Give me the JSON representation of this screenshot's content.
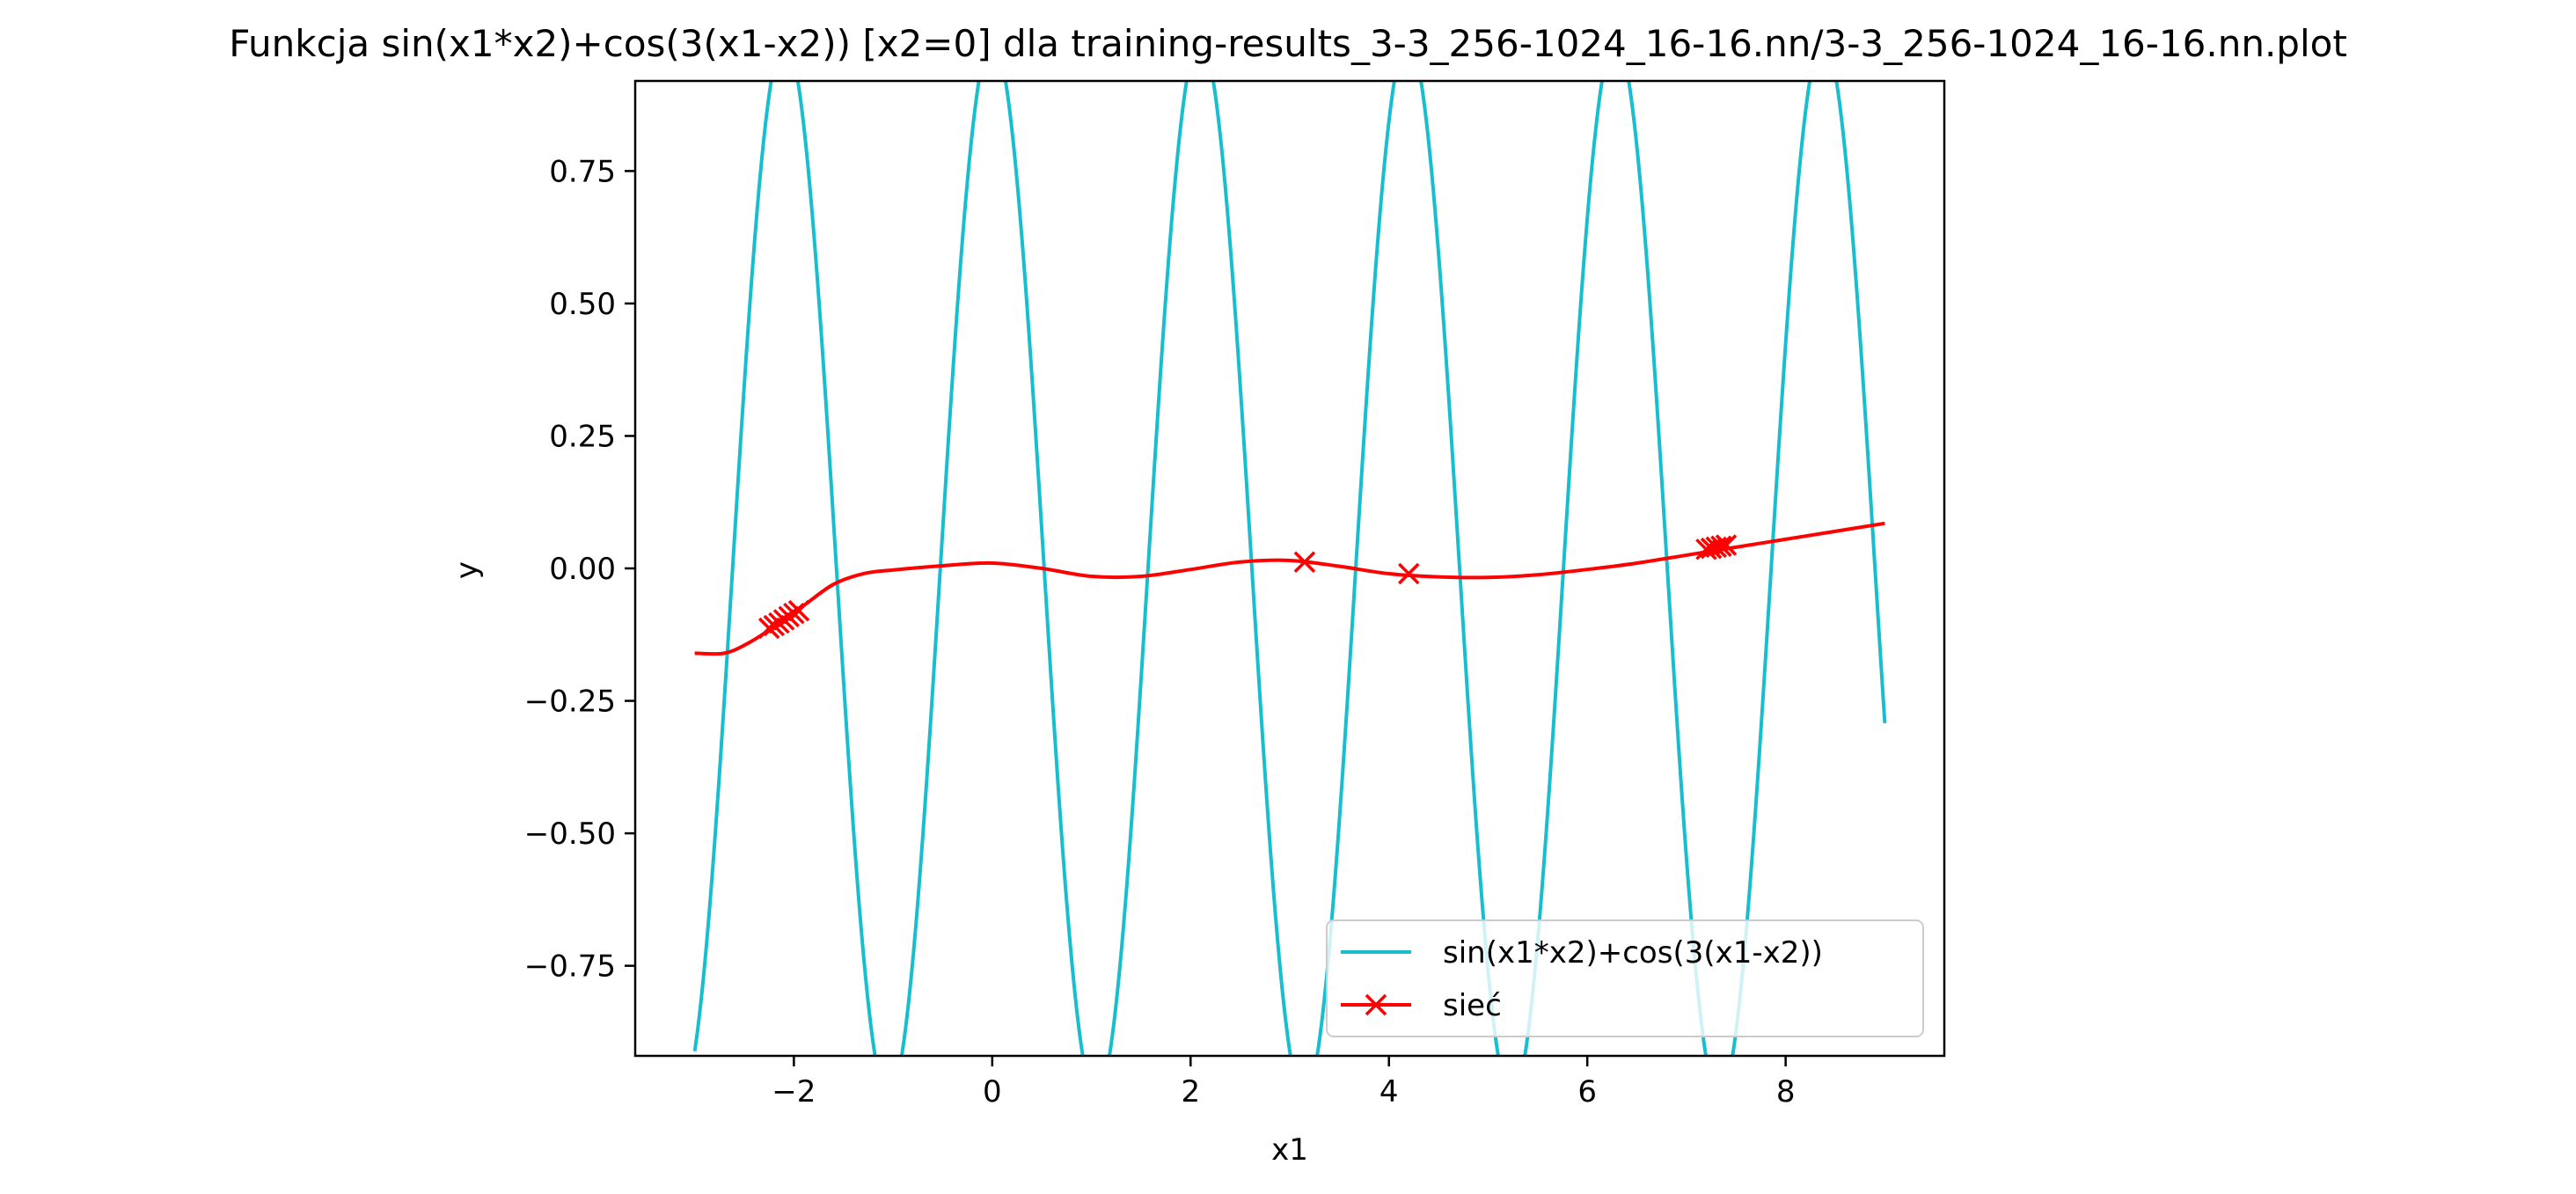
{
  "chart_data": {
    "type": "line",
    "title": "Funkcja sin(x1*x2)+cos(3(x1-x2)) [x2=0] dla training-results_3-3_256-1024_16-16.nn/3-3_256-1024_16-16.nn.plot",
    "xlabel": "x1",
    "ylabel": "y",
    "xlim": [
      -3.6,
      9.6
    ],
    "ylim": [
      -0.92,
      0.92
    ],
    "x_ticks": [
      -2,
      0,
      2,
      4,
      6,
      8
    ],
    "x_tick_labels": [
      "−2",
      "0",
      "2",
      "4",
      "6",
      "8"
    ],
    "y_ticks": [
      -0.75,
      -0.5,
      -0.25,
      0.0,
      0.25,
      0.5,
      0.75
    ],
    "y_tick_labels": [
      "−0.75",
      "−0.50",
      "−0.25",
      "0.00",
      "0.25",
      "0.50",
      "0.75"
    ],
    "grid": false,
    "legend_position": "lower-right",
    "series": [
      {
        "name": "sin(x1*x2)+cos(3(x1-x2))",
        "color": "#17becf",
        "marker": "none",
        "function": "cos(3*x1)",
        "x_range": [
          -3.0,
          9.0
        ]
      },
      {
        "name": "sieć",
        "color": "#ff0000",
        "marker": "x",
        "x": [
          -3.0,
          -2.7,
          -2.45,
          -2.2,
          -1.9,
          -1.6,
          -1.3,
          -1.0,
          -0.5,
          0.0,
          0.5,
          1.0,
          1.5,
          2.0,
          2.5,
          3.0,
          3.5,
          4.0,
          4.5,
          5.0,
          5.5,
          6.0,
          6.5,
          7.0,
          7.5,
          8.0,
          8.5,
          9.0
        ],
        "y": [
          -0.16,
          -0.16,
          -0.14,
          -0.11,
          -0.07,
          -0.03,
          -0.01,
          -0.003,
          0.005,
          0.01,
          0.0,
          -0.015,
          -0.015,
          -0.002,
          0.012,
          0.015,
          0.004,
          -0.01,
          -0.016,
          -0.017,
          -0.012,
          -0.002,
          0.01,
          0.025,
          0.04,
          0.055,
          0.07,
          0.085
        ]
      }
    ],
    "markers": {
      "series": "sieć",
      "x": [
        -2.25,
        -2.2,
        -2.15,
        -2.1,
        -2.05,
        -2.0,
        -1.95,
        3.15,
        4.2,
        7.2,
        7.25,
        7.3,
        7.35,
        7.4
      ],
      "y": [
        -0.113,
        -0.108,
        -0.103,
        -0.097,
        -0.091,
        -0.085,
        -0.08,
        0.012,
        -0.01,
        0.036,
        0.038,
        0.04,
        0.042,
        0.044
      ]
    }
  }
}
